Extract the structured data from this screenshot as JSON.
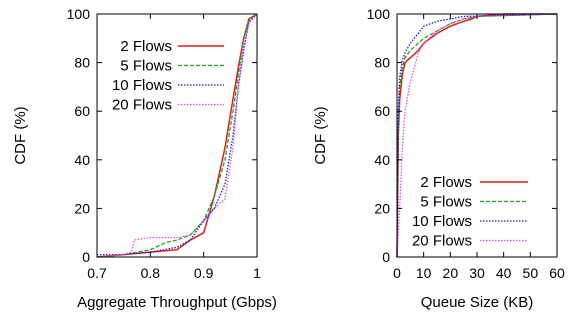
{
  "chart_data": [
    {
      "type": "line",
      "title": "",
      "xlabel": "Aggregate Throughput (Gbps)",
      "ylabel": "CDF (%)",
      "xlim": [
        0.7,
        1.0
      ],
      "ylim": [
        0,
        100
      ],
      "xticks": [
        "0.7",
        "0.8",
        "0.9",
        "1"
      ],
      "yticks": [
        "0",
        "20",
        "40",
        "60",
        "80",
        "100"
      ],
      "grid": false,
      "legend_position": "top-left",
      "series": [
        {
          "name": "2 Flows",
          "color": "#e41a1c",
          "style": "solid",
          "x": [
            0.7,
            0.75,
            0.8,
            0.85,
            0.875,
            0.9,
            0.92,
            0.94,
            0.955,
            0.965,
            0.975,
            0.985,
            1.0
          ],
          "y": [
            0,
            1,
            2,
            3,
            7,
            10,
            25,
            45,
            65,
            78,
            90,
            98,
            100
          ]
        },
        {
          "name": "5 Flows",
          "color": "#1aa81a",
          "style": "dashed",
          "x": [
            0.7,
            0.75,
            0.8,
            0.83,
            0.85,
            0.875,
            0.9,
            0.92,
            0.94,
            0.955,
            0.965,
            0.975,
            0.985,
            1.0
          ],
          "y": [
            0,
            1,
            3,
            6,
            7,
            9,
            15,
            25,
            40,
            60,
            75,
            90,
            98,
            100
          ]
        },
        {
          "name": "10 Flows",
          "color": "#1a1ad6",
          "style": "dotted",
          "x": [
            0.7,
            0.75,
            0.8,
            0.85,
            0.875,
            0.9,
            0.92,
            0.94,
            0.955,
            0.965,
            0.975,
            0.985,
            1.0
          ],
          "y": [
            1,
            1,
            2,
            4,
            7,
            15,
            20,
            30,
            50,
            70,
            85,
            97,
            100
          ]
        },
        {
          "name": "20 Flows",
          "color": "#e64ce6",
          "style": "dotted",
          "x": [
            0.7,
            0.75,
            0.765,
            0.77,
            0.8,
            0.85,
            0.875,
            0.9,
            0.92,
            0.94,
            0.955,
            0.965,
            0.975,
            0.985,
            1.0
          ],
          "y": [
            0,
            1,
            2,
            7,
            8,
            8,
            9,
            15,
            20,
            24,
            45,
            70,
            88,
            96,
            100
          ]
        }
      ]
    },
    {
      "type": "line",
      "title": "",
      "xlabel": "Queue Size (KB)",
      "ylabel": "CDF (%)",
      "xlim": [
        0,
        60
      ],
      "ylim": [
        0,
        100
      ],
      "xticks": [
        "0",
        "10",
        "20",
        "30",
        "40",
        "50",
        "60"
      ],
      "yticks": [
        "0",
        "20",
        "40",
        "60",
        "80",
        "100"
      ],
      "grid": false,
      "legend_position": "bottom-right",
      "series": [
        {
          "name": "2 Flows",
          "color": "#e41a1c",
          "style": "solid",
          "x": [
            0,
            0.5,
            1,
            2,
            3,
            5,
            8,
            10,
            15,
            20,
            25,
            28,
            30,
            40,
            60
          ],
          "y": [
            0,
            50,
            65,
            75,
            80,
            82,
            85,
            88,
            92,
            95,
            97,
            98,
            99,
            100,
            100
          ]
        },
        {
          "name": "5 Flows",
          "color": "#1aa81a",
          "style": "dashed",
          "x": [
            0,
            0.5,
            1,
            2,
            3,
            5,
            8,
            10,
            15,
            20,
            25,
            30,
            60
          ],
          "y": [
            0,
            55,
            70,
            78,
            82,
            85,
            88,
            90,
            93,
            96,
            98,
            99,
            100
          ]
        },
        {
          "name": "10 Flows",
          "color": "#1a1ad6",
          "style": "dotted",
          "x": [
            0,
            0.5,
            1,
            2,
            3,
            5,
            8,
            10,
            15,
            20,
            25,
            60
          ],
          "y": [
            0,
            60,
            74,
            81,
            84,
            88,
            92,
            95,
            97,
            98,
            99,
            100
          ]
        },
        {
          "name": "20 Flows",
          "color": "#e64ce6",
          "style": "dotted",
          "x": [
            0,
            1,
            2,
            3,
            5,
            7,
            8,
            10,
            15,
            20,
            25,
            30,
            60
          ],
          "y": [
            0,
            20,
            45,
            60,
            72,
            80,
            84,
            88,
            93,
            96,
            98,
            99,
            100
          ]
        }
      ]
    }
  ]
}
